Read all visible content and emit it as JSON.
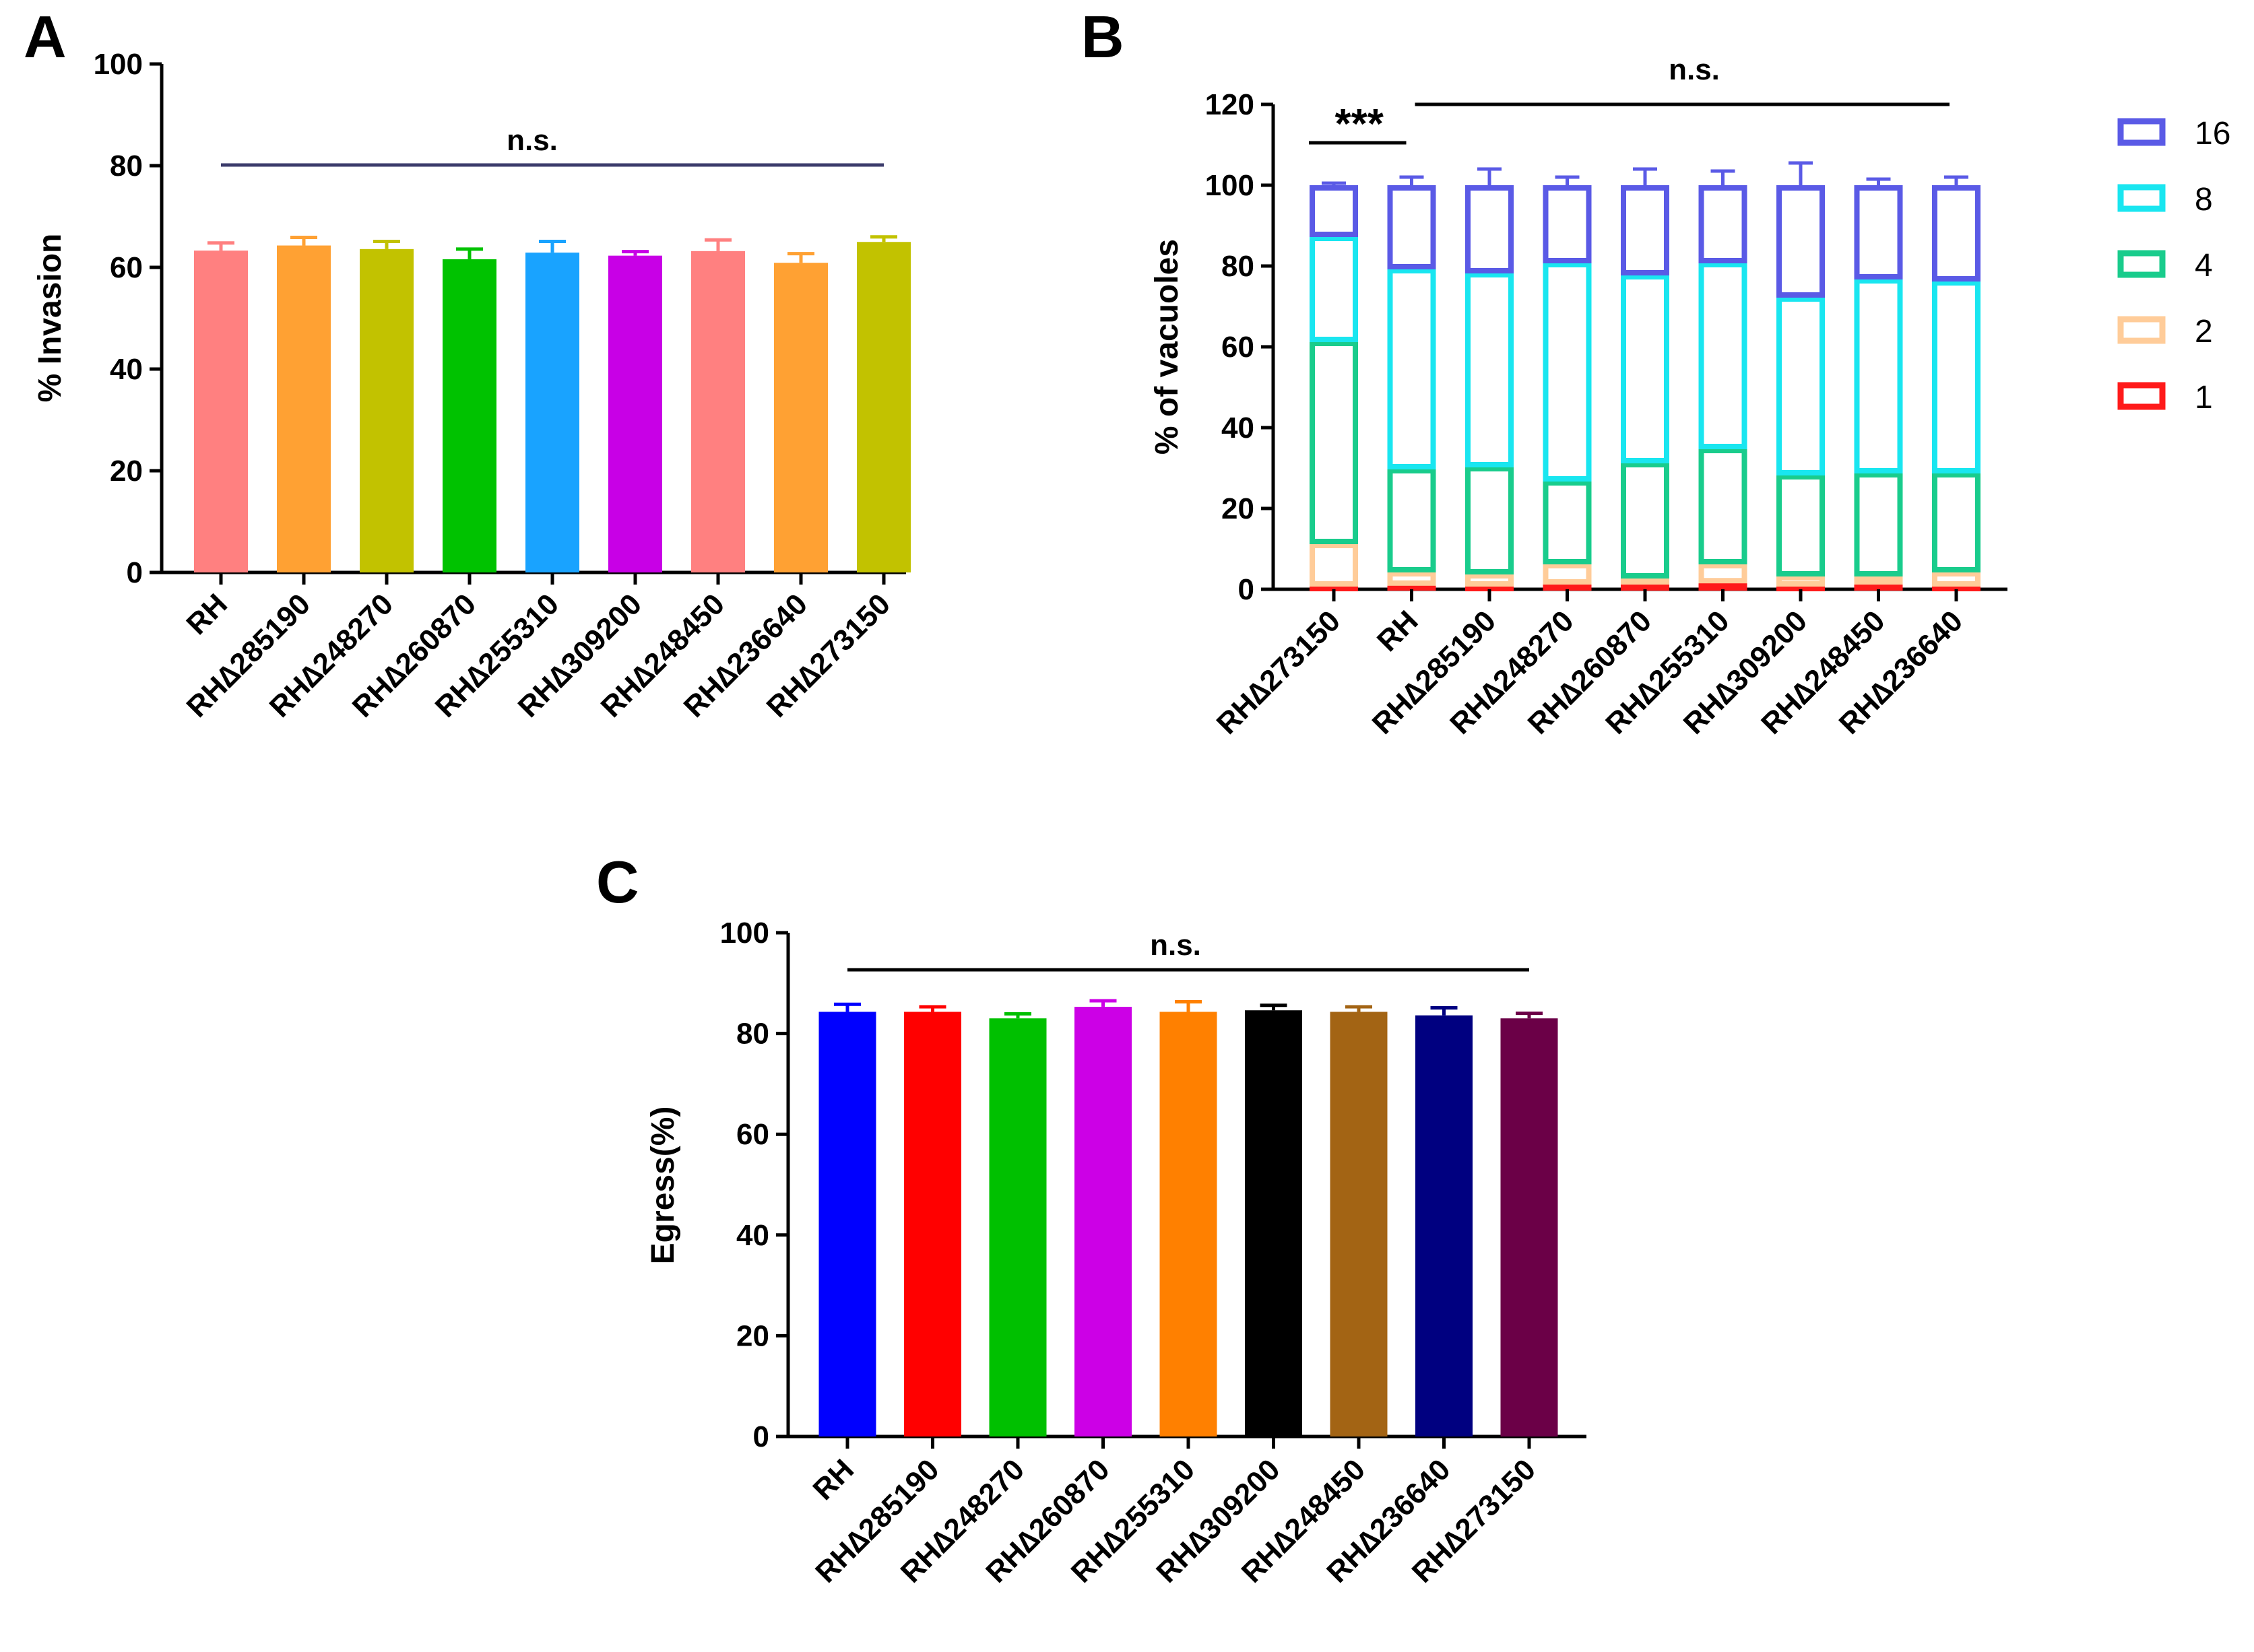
{
  "chart_data": [
    {
      "panel": "A",
      "type": "bar",
      "ylabel": "% Invasion",
      "ylim": [
        0,
        100
      ],
      "yticks": [
        0,
        20,
        40,
        60,
        80,
        100
      ],
      "categories": [
        "RH",
        "RH∆285190",
        "RH∆248270",
        "RH∆260870",
        "RH∆255310",
        "RH∆309200",
        "RH∆248450",
        "RH∆236640",
        "RH∆273150"
      ],
      "values": [
        63.3,
        64.3,
        63.6,
        61.6,
        62.9,
        62.3,
        63.2,
        60.9,
        65.0
      ],
      "errors": [
        1.5,
        1.6,
        1.5,
        2.0,
        2.2,
        0.8,
        2.2,
        1.8,
        1.0
      ],
      "colors": [
        "#FF8080",
        "#FFA133",
        "#C2C200",
        "#00C200",
        "#19A3FF",
        "#C800E6",
        "#FF8080",
        "#FFA133",
        "#C2C200"
      ],
      "annotation": {
        "text": "n.s.",
        "line_color": "#3B3B6B"
      }
    },
    {
      "panel": "B",
      "type": "stacked_bar",
      "ylabel": "% of vacuoles",
      "ylim": [
        0,
        120
      ],
      "yticks": [
        0,
        20,
        40,
        60,
        80,
        100,
        120
      ],
      "categories": [
        "RH∆273150",
        "RH",
        "RH∆285190",
        "RH∆248270",
        "RH∆260870",
        "RH∆255310",
        "RH∆309200",
        "RH∆248450",
        "RH∆236640"
      ],
      "series": [
        {
          "name": "1",
          "color": "#FF1A1A",
          "cumulative": [
            1.0,
            1.2,
            1.0,
            1.5,
            1.5,
            1.8,
            1.0,
            1.5,
            1.0
          ],
          "errors": [
            0.6,
            0.8,
            0.8,
            1.0,
            1.0,
            1.0,
            0.8,
            1.0,
            0.8
          ]
        },
        {
          "name": "2",
          "color": "#FFCC99",
          "cumulative": [
            11.5,
            4.5,
            4.0,
            6.5,
            3.0,
            6.5,
            3.5,
            3.5,
            4.5
          ],
          "errors": [
            1.8,
            2.0,
            2.5,
            2.5,
            2.0,
            3.2,
            1.5,
            1.5,
            1.0
          ]
        },
        {
          "name": "4",
          "color": "#19CC8C",
          "cumulative": [
            61.5,
            30.0,
            30.5,
            27.0,
            31.5,
            35.0,
            28.5,
            29.0,
            29.0
          ],
          "errors": [
            1.2,
            2.0,
            1.0,
            3.5,
            3.5,
            2.0,
            3.0,
            2.5,
            1.8
          ]
        },
        {
          "name": "8",
          "color": "#19E6F0",
          "cumulative": [
            87.5,
            79.5,
            78.5,
            81.0,
            78.0,
            81.0,
            72.5,
            77.0,
            76.5
          ],
          "errors": [
            1.2,
            1.8,
            4.0,
            7.0,
            3.5,
            3.0,
            2.5,
            1.5,
            2.0
          ]
        },
        {
          "name": "16",
          "color": "#5A5AE6",
          "cumulative": [
            100,
            100,
            100,
            100,
            100,
            100,
            100,
            100,
            100
          ],
          "errors": [
            0.5,
            2.0,
            4.0,
            2.0,
            4.0,
            3.5,
            5.5,
            1.5,
            2.0
          ]
        }
      ],
      "legend": [
        "16",
        "8",
        "4",
        "2",
        "1"
      ],
      "annotations": [
        {
          "text": "***",
          "from": "RH∆273150",
          "to": "RH"
        },
        {
          "text": "n.s.",
          "from": "RH",
          "to": "RH∆236640"
        }
      ]
    },
    {
      "panel": "C",
      "type": "bar",
      "ylabel": "Egress(%)",
      "ylim": [
        0,
        100
      ],
      "yticks": [
        0,
        20,
        40,
        60,
        80,
        100
      ],
      "categories": [
        "RH",
        "RH∆285190",
        "RH∆248270",
        "RH∆260870",
        "RH∆255310",
        "RH∆309200",
        "RH∆248450",
        "RH∆236640",
        "RH∆273150"
      ],
      "values": [
        84.3,
        84.3,
        83.0,
        85.3,
        84.3,
        84.6,
        84.3,
        83.6,
        83.0
      ],
      "errors": [
        1.5,
        1.0,
        0.9,
        1.2,
        2.0,
        1.0,
        1.0,
        1.5,
        1.0
      ],
      "colors": [
        "#0000FF",
        "#FF0000",
        "#00C000",
        "#CC00E6",
        "#FF8000",
        "#000000",
        "#A36414",
        "#000080",
        "#6B0047"
      ],
      "annotation": {
        "text": "n.s.",
        "line_color": "#000000"
      }
    }
  ]
}
